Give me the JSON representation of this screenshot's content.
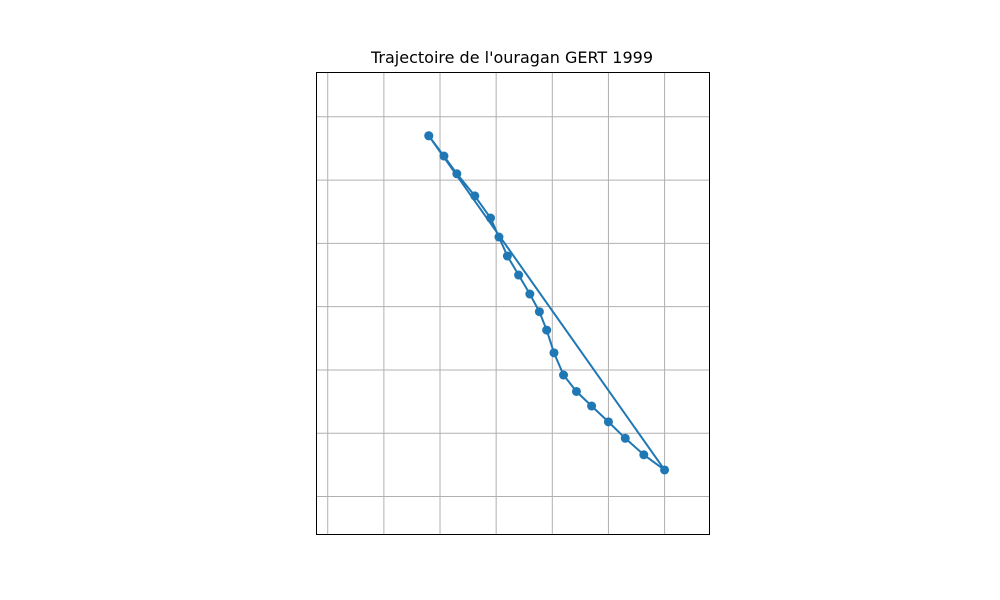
{
  "chart_data": {
    "type": "line",
    "title": "Trajectoire de l'ouragan GERT 1999",
    "xlabel": "",
    "ylabel": "",
    "xlim": [
      -1.2,
      5.8
    ],
    "ylim": [
      -0.6,
      6.7
    ],
    "grid": true,
    "xticks": [
      -1,
      0,
      1,
      2,
      3,
      4,
      5
    ],
    "yticks": [
      0,
      1,
      2,
      3,
      4,
      5,
      6
    ],
    "series": [
      {
        "color": "#1f77b4",
        "marker": "circle",
        "x": [
          0.8,
          1.07,
          1.3,
          1.62,
          1.9,
          2.05,
          2.2,
          2.4,
          2.6,
          2.77,
          2.9,
          3.03,
          3.2,
          3.43,
          3.7,
          4.0,
          4.3,
          4.63,
          5.0,
          0.8
        ],
        "y": [
          5.7,
          5.38,
          5.1,
          4.75,
          4.4,
          4.1,
          3.8,
          3.5,
          3.2,
          2.92,
          2.63,
          2.27,
          1.92,
          1.66,
          1.43,
          1.18,
          0.92,
          0.66,
          0.42,
          5.7
        ]
      }
    ]
  }
}
